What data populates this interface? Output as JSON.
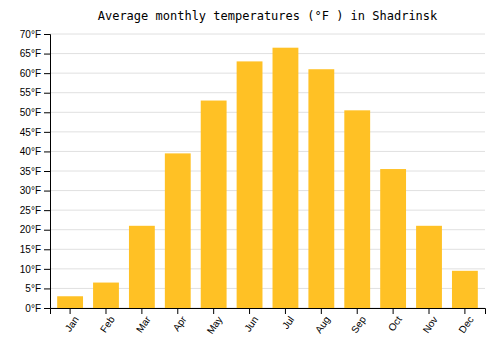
{
  "chart_data": {
    "type": "bar",
    "title": "Average monthly temperatures (°F ) in Shadrinsk",
    "categories": [
      "Jan",
      "Feb",
      "Mar",
      "Apr",
      "May",
      "Jun",
      "Jul",
      "Aug",
      "Sep",
      "Oct",
      "Nov",
      "Dec"
    ],
    "values": [
      3,
      6.5,
      21,
      39.5,
      53,
      63,
      66.5,
      61,
      50.5,
      35.5,
      21,
      9.5
    ],
    "color": "#FFC125",
    "ylim": [
      0,
      70
    ],
    "yticks": [
      {
        "value": 0,
        "label": "0°F"
      },
      {
        "value": 5,
        "label": "5°F"
      },
      {
        "value": 10,
        "label": "10°F"
      },
      {
        "value": 15,
        "label": "15°F"
      },
      {
        "value": 20,
        "label": "20°F"
      },
      {
        "value": 25,
        "label": "25°F"
      },
      {
        "value": 30,
        "label": "30°F"
      },
      {
        "value": 35,
        "label": "35°F"
      },
      {
        "value": 40,
        "label": "40°F"
      },
      {
        "value": 45,
        "label": "45°F"
      },
      {
        "value": 50,
        "label": "50°F"
      },
      {
        "value": 55,
        "label": "55°F"
      },
      {
        "value": 60,
        "label": "60°F"
      },
      {
        "value": 65,
        "label": "65°F"
      },
      {
        "value": 70,
        "label": "70°F"
      }
    ],
    "grid": true
  }
}
